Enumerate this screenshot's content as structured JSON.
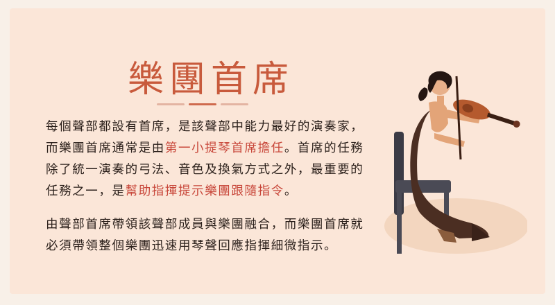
{
  "title": "樂團首席",
  "paragraph1": {
    "part1": "每個聲部都設有首席，是該聲部中能力最好的演奏家，而樂團首席通常是由",
    "highlight1": "第一小提琴首席擔任",
    "part2": "。首席的任務除了統一演奏的弓法、音色及換氣方式之外，最重要的任務之一，是",
    "highlight2": "幫助指揮提示樂團跟隨指令",
    "part3": "。"
  },
  "paragraph2": "由聲部首席帶領該聲部成員與樂團融合，而樂團首席就必須帶領整個樂團迅速用琴聲回應指揮細微指示。",
  "illustration": {
    "icon": "violinist-illustration"
  },
  "colors": {
    "card_bg": "#fbe6d8",
    "title": "#c85a3c",
    "highlight": "#c8473a",
    "body_text": "#2a1f1a"
  }
}
